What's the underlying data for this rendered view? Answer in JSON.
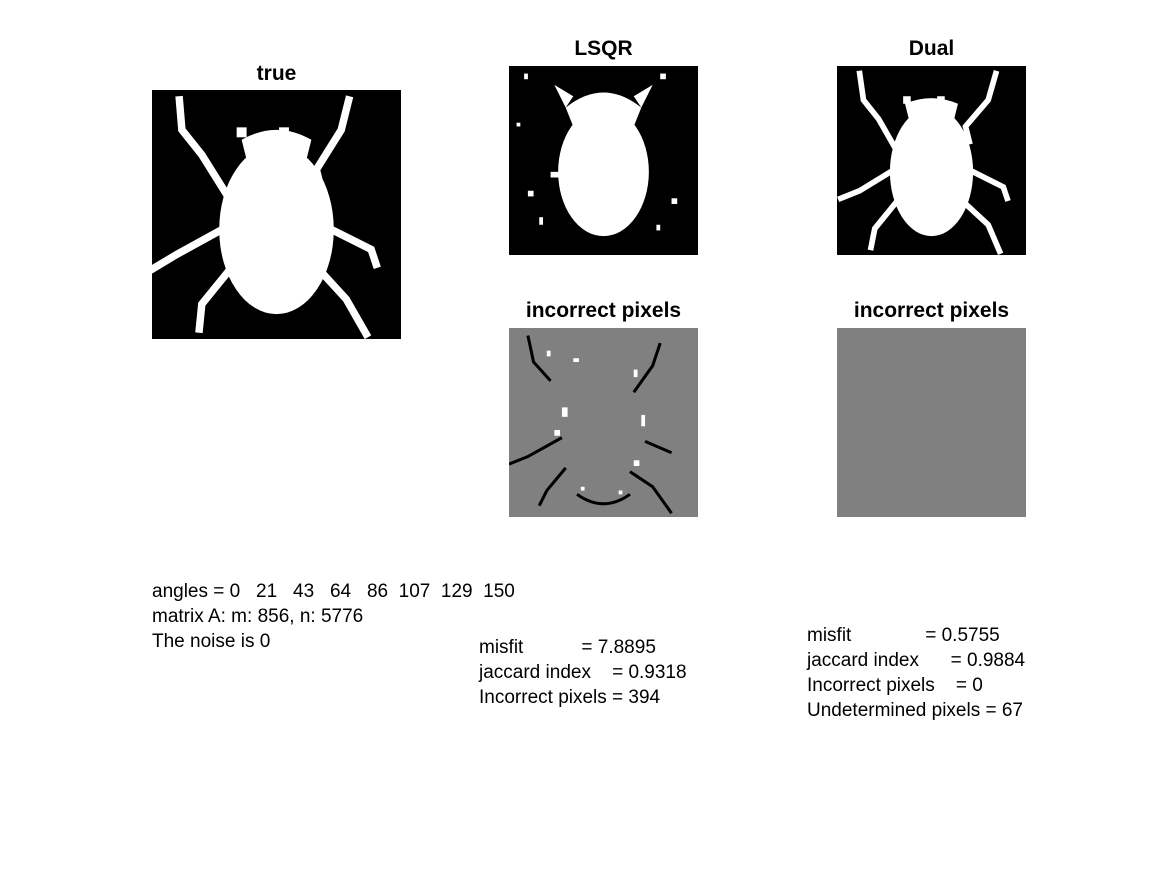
{
  "panels": {
    "true": {
      "title": "true"
    },
    "lsqr": {
      "title": "LSQR"
    },
    "dual": {
      "title": "Dual"
    },
    "lsqr_incorrect": {
      "title": "incorrect pixels"
    },
    "dual_incorrect": {
      "title": "incorrect pixels"
    }
  },
  "info": {
    "angles": "angles = 0   21   43   64   86  107  129  150",
    "matrix": "matrix A: m: 856, n: 5776",
    "noise": "The noise is 0"
  },
  "lsqr_stats": {
    "misfit": "misfit           = 7.8895",
    "jaccard": "jaccard index    = 0.9318",
    "incorrect": "Incorrect pixels = 394"
  },
  "dual_stats": {
    "misfit": "misfit              = 0.5755",
    "jaccard": "jaccard index      = 0.9884",
    "incorrect": "Incorrect pixels    = 0",
    "undetermined": "Undetermined pixels = 67"
  },
  "colors": {
    "background": "#000000",
    "foreground": "#ffffff",
    "gray": "#808080"
  }
}
